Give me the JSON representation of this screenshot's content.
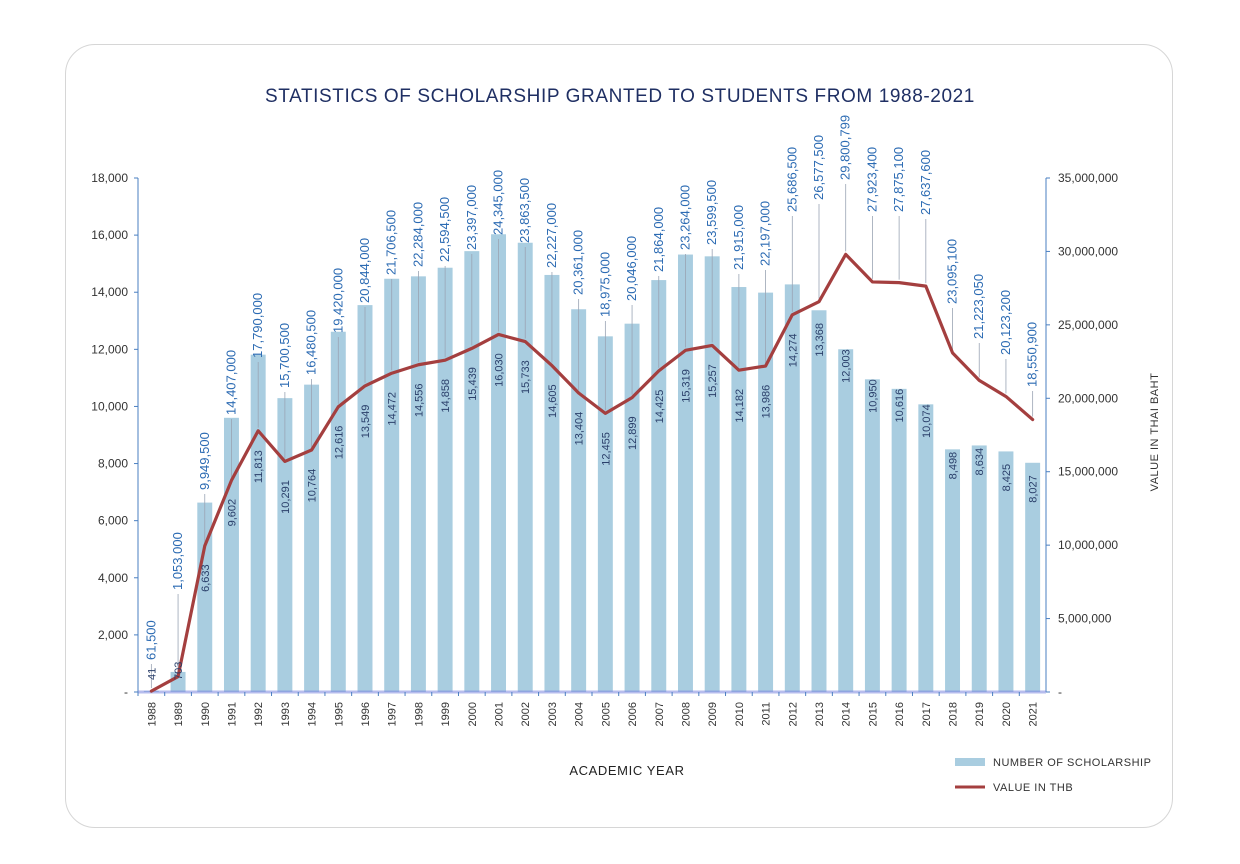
{
  "chart_data": {
    "type": "bar",
    "title": "STATISTICS OF SCHOLARSHIP GRANTED TO STUDENTS FROM 1988-2021",
    "xlabel": "ACADEMIC YEAR",
    "ylabel_right": "VALUE IN THAI BAHT",
    "categories": [
      "1988",
      "1989",
      "1990",
      "1991",
      "1992",
      "1993",
      "1994",
      "1995",
      "1996",
      "1997",
      "1998",
      "1999",
      "2000",
      "2001",
      "2002",
      "2003",
      "2004",
      "2005",
      "2006",
      "2007",
      "2008",
      "2009",
      "2010",
      "2011",
      "2012",
      "2013",
      "2014",
      "2015",
      "2016",
      "2017",
      "2018",
      "2019",
      "2020",
      "2021"
    ],
    "series": [
      {
        "name": "NUMBER OF SCHOLARSHIP",
        "axis": "left",
        "type": "bar",
        "color": "#a9cde0",
        "values": [
          41,
          703,
          6633,
          9602,
          11813,
          10291,
          10764,
          12616,
          13549,
          14472,
          14556,
          14858,
          15439,
          16030,
          15733,
          14605,
          13404,
          12455,
          12899,
          14425,
          15319,
          15257,
          14182,
          13986,
          14274,
          13368,
          12003,
          10950,
          10616,
          10074,
          8498,
          8634,
          8425,
          8027
        ],
        "labels": [
          "41",
          "703",
          "6,633",
          "9,602",
          "11,813",
          "10,291",
          "10,764",
          "12,616",
          "13,549",
          "14,472",
          "14,556",
          "14,858",
          "15,439",
          "16,030",
          "15,733",
          "14,605",
          "13,404",
          "12,455",
          "12,899",
          "14,425",
          "15,319",
          "15,257",
          "14,182",
          "13,986",
          "14,274",
          "13,368",
          "12,003",
          "10,950",
          "10,616",
          "10,074",
          "8,498",
          "8,634",
          "8,425",
          "8,027"
        ]
      },
      {
        "name": "VALUE IN THB",
        "axis": "right",
        "type": "line",
        "color": "#a43f3f",
        "values": [
          61500,
          1053000,
          9949500,
          14407000,
          17790000,
          15700500,
          16480500,
          19420000,
          20844000,
          21706500,
          22284000,
          22594500,
          23397000,
          24345000,
          23863500,
          22227000,
          20361000,
          18975000,
          20046000,
          21864000,
          23264000,
          23599500,
          21915000,
          22197000,
          25686500,
          26577500,
          29800799,
          27923400,
          27875100,
          27637600,
          23095100,
          21223050,
          20123200,
          18550900
        ],
        "labels": [
          "61,500",
          "1,053,000",
          "9,949,500",
          "14,407,000",
          "17,790,000",
          "15,700,500",
          "16,480,500",
          "19,420,000",
          "20,844,000",
          "21,706,500",
          "22,284,000",
          "22,594,500",
          "23,397,000",
          "24,345,000",
          "23,863,500",
          "22,227,000",
          "20,361,000",
          "18,975,000",
          "20,046,000",
          "21,864,000",
          "23,264,000",
          "23,599,500",
          "21,915,000",
          "22,197,000",
          "25,686,500",
          "26,577,500",
          "29,800,799",
          "27,923,400",
          "27,875,100",
          "27,637,600",
          "23,095,100",
          "21,223,050",
          "20,123,200",
          "18,550,900"
        ]
      }
    ],
    "ylim_left": [
      0,
      18000
    ],
    "ylim_right": [
      0,
      35000000
    ],
    "yticks_left": [
      "-",
      "2,000",
      "4,000",
      "6,000",
      "8,000",
      "10,000",
      "12,000",
      "14,000",
      "16,000",
      "18,000"
    ],
    "yticks_right": [
      "-",
      "5,000,000",
      "10,000,000",
      "15,000,000",
      "20,000,000",
      "25,000,000",
      "30,000,000",
      "35,000,000"
    ],
    "grid": false,
    "legend_position": "bottom-right",
    "colors": {
      "bar": "#a9cde0",
      "line": "#a43f3f",
      "title": "#1f2f63",
      "axis": "#4a7fc1",
      "line_label": "#2c6bb3"
    }
  }
}
